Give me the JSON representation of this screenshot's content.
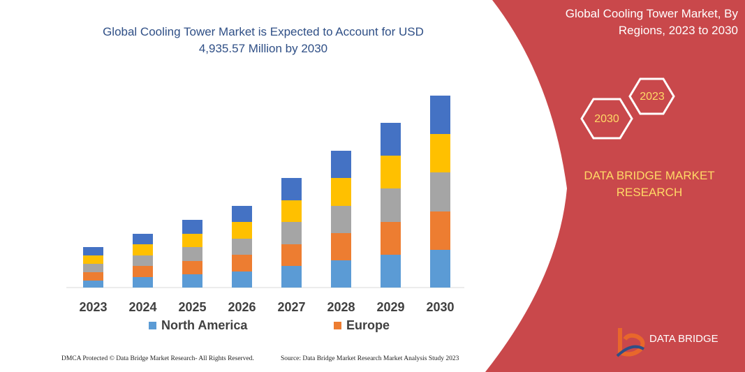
{
  "chart_data": {
    "type": "bar",
    "stacked": true,
    "title": "Global Cooling Tower Market is Expected to Account for USD 4,935.57 Million by 2030",
    "categories": [
      "2023",
      "2024",
      "2025",
      "2026",
      "2027",
      "2028",
      "2029",
      "2030"
    ],
    "series": [
      {
        "name": "North America",
        "color": "#5b9bd5",
        "values": [
          10,
          15,
          19,
          23,
          31,
          39,
          47,
          54
        ]
      },
      {
        "name": "Europe",
        "color": "#ed7d31",
        "values": [
          12,
          16,
          19,
          24,
          31,
          39,
          47,
          55
        ]
      },
      {
        "color": "#a5a5a5",
        "values": [
          12,
          15,
          20,
          23,
          32,
          39,
          48,
          56
        ]
      },
      {
        "color": "#ffc000",
        "values": [
          12,
          16,
          19,
          24,
          31,
          40,
          47,
          55
        ]
      },
      {
        "color": "#4472c4",
        "values": [
          12,
          15,
          20,
          23,
          32,
          39,
          47,
          55
        ]
      }
    ]
  },
  "panel": {
    "title": "Global Cooling Tower Market, By Regions, 2023 to 2030",
    "badge_start": "2023",
    "badge_end": "2030",
    "brand": "DATA BRIDGE MARKET RESEARCH",
    "logo": "DATA BRIDGE"
  },
  "footer": {
    "left": "DMCA Protected © Data Bridge Market Research-  All Rights Reserved.",
    "right": "Source: Data Bridge Market Research  Market Analysis Study 2023"
  }
}
